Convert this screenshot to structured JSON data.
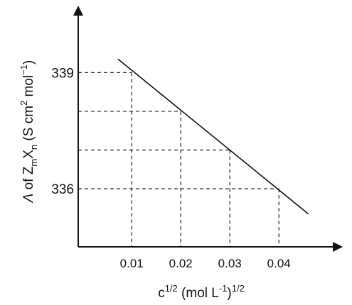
{
  "chart_data": {
    "type": "line",
    "title": "",
    "xlabel": {
      "text": "c",
      "exp": "1/2",
      "mid": " (mol L",
      "exp2": "-1",
      "end": ")",
      "exp3": "1/2"
    },
    "ylabel": {
      "lambda": "Λ",
      "t1": " of Z",
      "sub1": "m",
      "t2": "X",
      "sub2": "n",
      "t3": " (S cm",
      "sup1": "2",
      "t4": " mol",
      "sup2": "−1",
      "t5": ")"
    },
    "x_ticks": [
      "0.01",
      "0.02",
      "0.03",
      "0.04"
    ],
    "x_tick_values": [
      0.01,
      0.02,
      0.03,
      0.04
    ],
    "y_ticks": [
      "339",
      "336"
    ],
    "y_tick_values": [
      339,
      336
    ],
    "xlim": [
      -0.0009,
      0.052
    ],
    "ylim": [
      334.5,
      340.6
    ],
    "series": [
      {
        "x": [
          0.0072,
          0.046
        ],
        "y": [
          339.35,
          335.35
        ]
      }
    ],
    "guide_points": [
      {
        "x": 0.01,
        "y": 339
      },
      {
        "x": 0.02,
        "y": 338
      },
      {
        "x": 0.03,
        "y": 337
      },
      {
        "x": 0.04,
        "y": 336
      }
    ],
    "grid": false,
    "legend": "none"
  }
}
